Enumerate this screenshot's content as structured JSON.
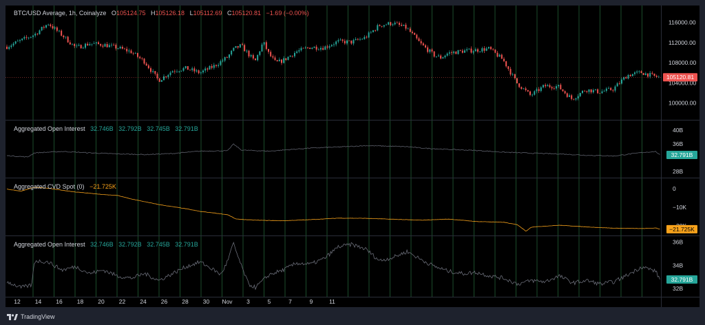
{
  "header": {
    "symbol": "BTC/USD Average, 1h, Coinalyze",
    "o_label": "O",
    "o_value": "105124.75",
    "h_label": "H",
    "h_value": "105126.18",
    "l_label": "L",
    "l_value": "105112.69",
    "c_label": "C",
    "c_value": "105120.81",
    "change": "−1.69 (−0.00%)"
  },
  "footer": {
    "brand": "TradingView"
  },
  "colors": {
    "up": "#26a69a",
    "down": "#ef5350",
    "grid": "#1b4d2b",
    "axis_text": "#d1d4dc",
    "oi_line": "#5d606b",
    "cvd_line": "#f7a21b",
    "teal_label": "#26a69a",
    "orange_label": "#f7a21b"
  },
  "chart_data": [
    {
      "type": "candlestick",
      "title": "BTC/USD Average, 1h, Coinalyze",
      "x_ticks": [
        "12",
        "14",
        "16",
        "18",
        "20",
        "22",
        "24",
        "26",
        "28",
        "30",
        "Nov",
        "3",
        "5",
        "7",
        "9",
        "11"
      ],
      "y_ticks": [
        "116000.00",
        "112000.00",
        "108000.00",
        "104000.00",
        "100000.00"
      ],
      "y_tick_values": [
        116000,
        112000,
        108000,
        104000,
        100000
      ],
      "ylim": [
        97500,
        118000
      ],
      "last_price_label": "105120.81",
      "last_price": 105120.81,
      "close_path": [
        [
          0,
          111200
        ],
        [
          2,
          113600
        ],
        [
          3,
          115800
        ],
        [
          4,
          113500
        ],
        [
          5,
          111000
        ],
        [
          6,
          111800
        ],
        [
          7,
          111600
        ],
        [
          8,
          111000
        ],
        [
          9,
          110200
        ],
        [
          10,
          108200
        ],
        [
          11,
          104500
        ],
        [
          11.5,
          105400
        ],
        [
          12,
          106400
        ],
        [
          13,
          106900
        ],
        [
          14,
          106000
        ],
        [
          15,
          107300
        ],
        [
          16,
          109100
        ],
        [
          16.5,
          110800
        ],
        [
          17,
          111400
        ],
        [
          18,
          108200
        ],
        [
          18.6,
          112100
        ],
        [
          19,
          109800
        ],
        [
          19.5,
          108000
        ],
        [
          20,
          108400
        ],
        [
          21,
          110200
        ],
        [
          22,
          111100
        ],
        [
          23,
          111000
        ],
        [
          24,
          112200
        ],
        [
          25,
          112100
        ],
        [
          26,
          113000
        ],
        [
          27,
          115400
        ],
        [
          28,
          115900
        ],
        [
          29,
          114900
        ],
        [
          29.5,
          113400
        ],
        [
          30,
          111800
        ],
        [
          31,
          109500
        ],
        [
          31.5,
          109000
        ],
        [
          32,
          109900
        ],
        [
          33,
          110300
        ],
        [
          34,
          110500
        ],
        [
          35,
          110800
        ],
        [
          36,
          108600
        ],
        [
          37,
          104000
        ],
        [
          38,
          101500
        ],
        [
          39,
          103400
        ],
        [
          40,
          103300
        ],
        [
          41,
          100800
        ],
        [
          42,
          102700
        ],
        [
          43,
          102200
        ],
        [
          44,
          102800
        ],
        [
          45,
          105500
        ],
        [
          46,
          106100
        ],
        [
          47,
          105300
        ],
        [
          47.3,
          105120
        ]
      ]
    },
    {
      "type": "line",
      "title": "Aggregated Open Interest",
      "values_label": [
        "32.746B",
        "32.792B",
        "32.745B",
        "32.791B"
      ],
      "y_ticks": [
        "40B",
        "36B",
        "28B"
      ],
      "y_tick_values": [
        40,
        36,
        28
      ],
      "ylim": [
        27,
        41
      ],
      "last_label": "32.791B",
      "last_value": 32.791,
      "path": [
        [
          0,
          32.6
        ],
        [
          1.5,
          32.2
        ],
        [
          2,
          33.4
        ],
        [
          4,
          33.8
        ],
        [
          6,
          33.4
        ],
        [
          8,
          33.1
        ],
        [
          10,
          32.9
        ],
        [
          12,
          33.2
        ],
        [
          14,
          33.9
        ],
        [
          16,
          34.0
        ],
        [
          16.4,
          36.0
        ],
        [
          17,
          34.2
        ],
        [
          19,
          33.9
        ],
        [
          20,
          34.2
        ],
        [
          22,
          34.8
        ],
        [
          24,
          35.1
        ],
        [
          26,
          35.5
        ],
        [
          28,
          35.3
        ],
        [
          29,
          35.2
        ],
        [
          30,
          34.8
        ],
        [
          32,
          34.4
        ],
        [
          34,
          34.1
        ],
        [
          36,
          33.6
        ],
        [
          38,
          33.3
        ],
        [
          40,
          33.1
        ],
        [
          42,
          32.7
        ],
        [
          44,
          32.5
        ],
        [
          46,
          33.5
        ],
        [
          47,
          33.8
        ],
        [
          47.3,
          32.79
        ]
      ]
    },
    {
      "type": "line",
      "title": "Aggregated CVD Spot (0)",
      "values_label": [
        "−21.725K"
      ],
      "y_ticks": [
        "0",
        "−10K",
        "−20K"
      ],
      "y_tick_values": [
        0,
        -10,
        -20
      ],
      "ylim": [
        -24,
        1.5
      ],
      "last_label": "−21.725K",
      "last_value": -21.725,
      "path": [
        [
          0,
          -0.2
        ],
        [
          1,
          -1.3
        ],
        [
          2,
          0.8
        ],
        [
          3,
          0.2
        ],
        [
          4,
          -0.8
        ],
        [
          5,
          -1.8
        ],
        [
          6,
          -2.4
        ],
        [
          7,
          -3.2
        ],
        [
          8,
          -3.6
        ],
        [
          9,
          -5.5
        ],
        [
          10,
          -7.0
        ],
        [
          11,
          -8.5
        ],
        [
          13,
          -10.8
        ],
        [
          14,
          -12.2
        ],
        [
          15,
          -13.0
        ],
        [
          16,
          -14.0
        ],
        [
          16.6,
          -16.3
        ],
        [
          18,
          -16.9
        ],
        [
          20,
          -17.2
        ],
        [
          22,
          -16.6
        ],
        [
          24,
          -15.8
        ],
        [
          26,
          -15.9
        ],
        [
          28,
          -16.4
        ],
        [
          30,
          -16.9
        ],
        [
          32,
          -16.3
        ],
        [
          34,
          -17.6
        ],
        [
          36,
          -18.0
        ],
        [
          37,
          -19.4
        ],
        [
          37.6,
          -22.8
        ],
        [
          38,
          -20.6
        ],
        [
          40,
          -19.6
        ],
        [
          42,
          -20.5
        ],
        [
          44,
          -21.2
        ],
        [
          46,
          -21.4
        ],
        [
          47,
          -21.1
        ],
        [
          47.3,
          -21.725
        ]
      ]
    },
    {
      "type": "line",
      "title": "Aggregated Open Interest",
      "values_label": [
        "32.746B",
        "32.792B",
        "32.745B",
        "32.791B"
      ],
      "y_ticks": [
        "36B",
        "34B",
        "32B"
      ],
      "y_tick_values": [
        36,
        34,
        32
      ],
      "ylim": [
        31.6,
        36.1
      ],
      "last_label": "32.791B",
      "last_value": 32.791,
      "path": [
        [
          0,
          32.6
        ],
        [
          1,
          32.1
        ],
        [
          1.8,
          32.3
        ],
        [
          2,
          34.4
        ],
        [
          3,
          34.3
        ],
        [
          4,
          33.6
        ],
        [
          5,
          33.9
        ],
        [
          6,
          33.3
        ],
        [
          7,
          33.6
        ],
        [
          8,
          33.1
        ],
        [
          9,
          32.9
        ],
        [
          10,
          33.3
        ],
        [
          11,
          32.7
        ],
        [
          12,
          33.3
        ],
        [
          13,
          33.9
        ],
        [
          14,
          34.3
        ],
        [
          15,
          33.6
        ],
        [
          15.5,
          33.2
        ],
        [
          16,
          34.4
        ],
        [
          16.4,
          35.9
        ],
        [
          17,
          33.9
        ],
        [
          17.5,
          32.4
        ],
        [
          18,
          32.1
        ],
        [
          19,
          33.2
        ],
        [
          20,
          33.6
        ],
        [
          21,
          34.2
        ],
        [
          22,
          34.1
        ],
        [
          23,
          34.6
        ],
        [
          24,
          35.6
        ],
        [
          25,
          35.8
        ],
        [
          26,
          35.4
        ],
        [
          27,
          34.4
        ],
        [
          28,
          34.7
        ],
        [
          29,
          35.2
        ],
        [
          30,
          34.5
        ],
        [
          31,
          33.9
        ],
        [
          32,
          33.5
        ],
        [
          33,
          33.3
        ],
        [
          34,
          33.4
        ],
        [
          35,
          33.1
        ],
        [
          36,
          32.9
        ],
        [
          37,
          32.4
        ],
        [
          38,
          32.7
        ],
        [
          39,
          32.6
        ],
        [
          40,
          33.1
        ],
        [
          41,
          32.5
        ],
        [
          42,
          32.7
        ],
        [
          43,
          32.4
        ],
        [
          44,
          32.6
        ],
        [
          45,
          33.2
        ],
        [
          46,
          33.9
        ],
        [
          47,
          33.5
        ],
        [
          47.3,
          32.79
        ]
      ]
    }
  ]
}
